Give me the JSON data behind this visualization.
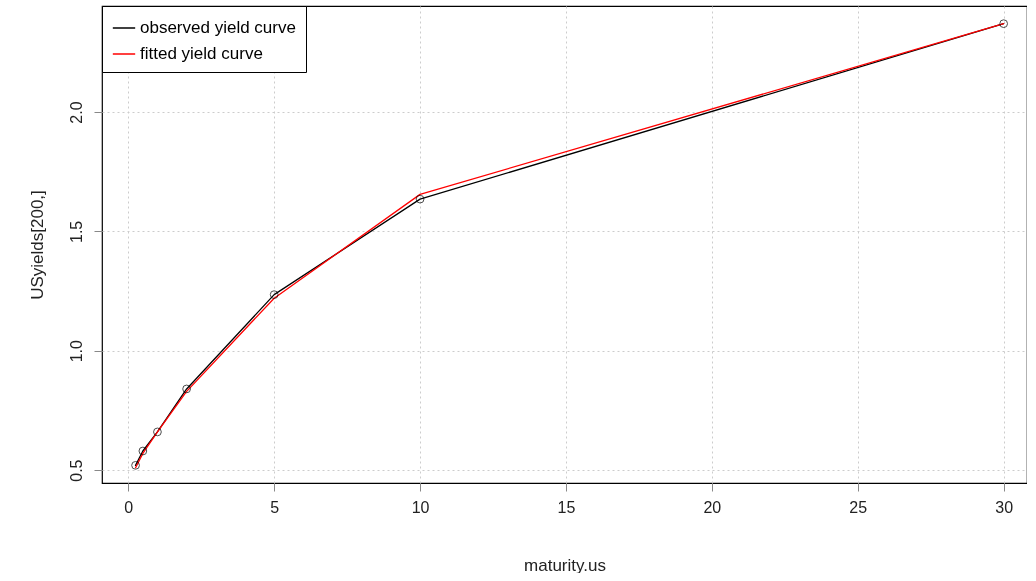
{
  "chart_data": {
    "type": "line",
    "xlabel": "maturity.us",
    "ylabel": "USyields[200,]",
    "x": [
      0.25,
      0.5,
      1,
      2,
      5,
      10,
      30
    ],
    "series": [
      {
        "name": "observed yield curve",
        "color": "#000000",
        "marker": "circle",
        "values": [
          0.52,
          0.58,
          0.66,
          0.84,
          1.235,
          1.635,
          2.37
        ]
      },
      {
        "name": "fitted yield curve",
        "color": "#ff0000",
        "marker": "none",
        "values": [
          0.51,
          0.57,
          0.66,
          0.83,
          1.22,
          1.655,
          2.37
        ]
      }
    ],
    "xlim": [
      -0.9,
      30.8
    ],
    "ylim": [
      0.446,
      2.444
    ],
    "xticks": [
      0,
      5,
      10,
      15,
      20,
      25,
      30
    ],
    "yticks": [
      0.5,
      {
        "value": 1,
        "label": "1.0"
      },
      1.5,
      {
        "value": 2,
        "label": "2.0"
      }
    ],
    "grid": true,
    "legend": "top left",
    "line_style": "solid"
  }
}
